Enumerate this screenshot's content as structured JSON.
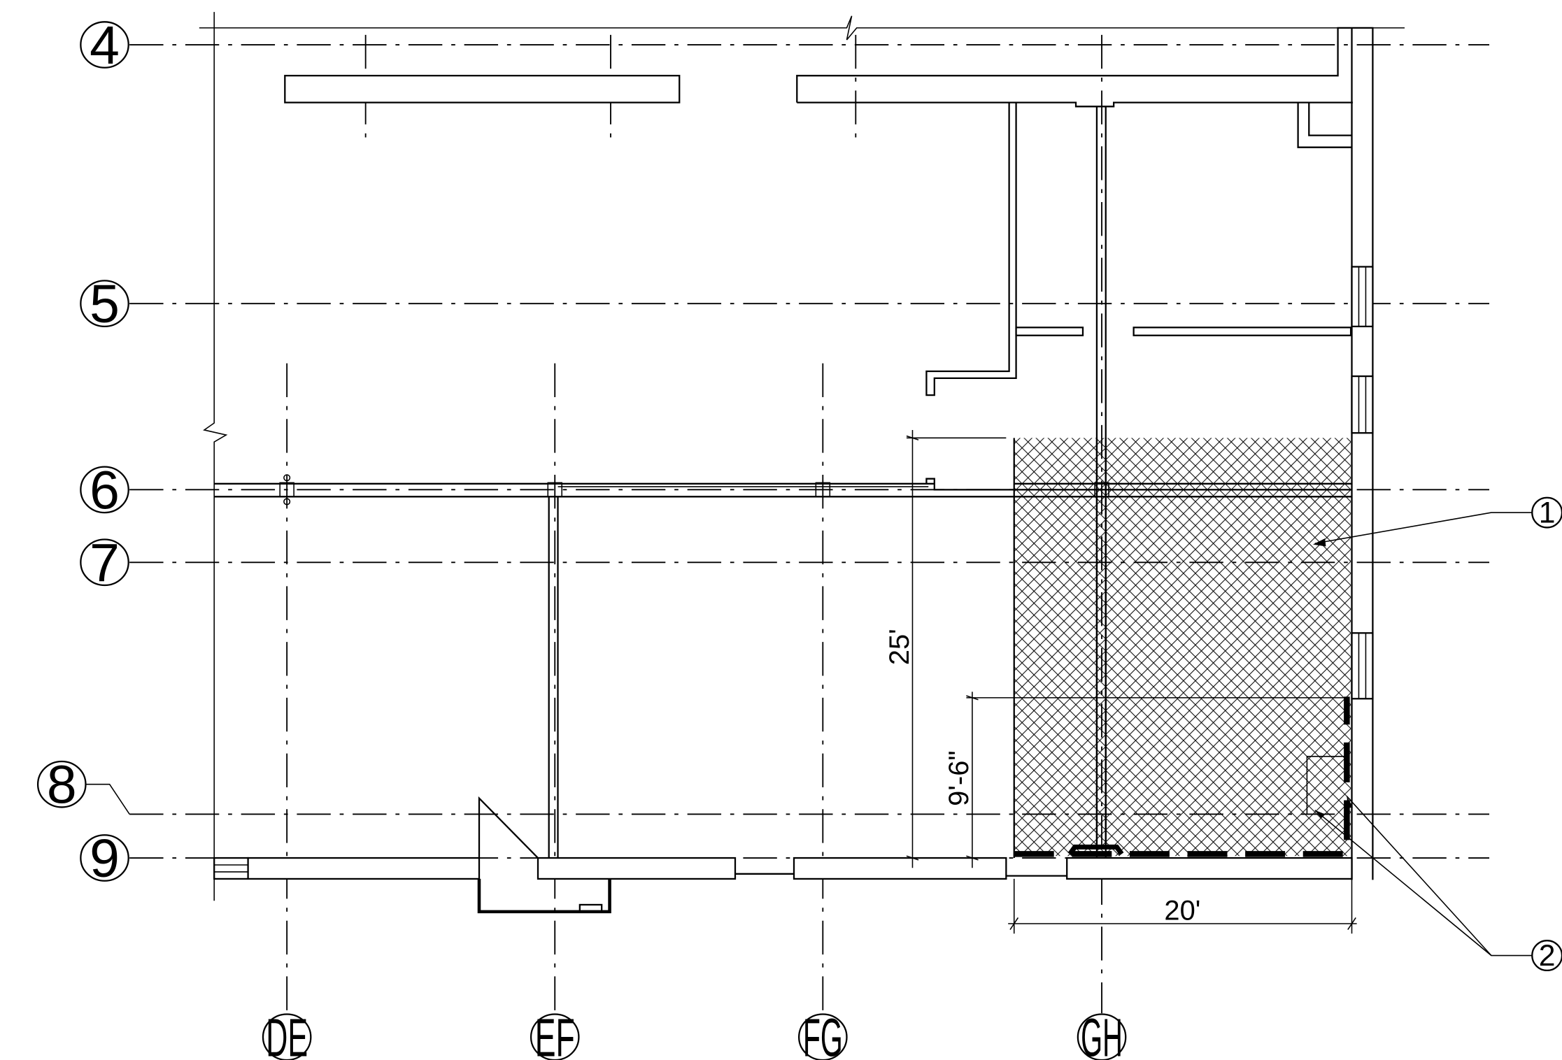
{
  "grid_rows": [
    {
      "id": "row-4",
      "label": "4"
    },
    {
      "id": "row-5",
      "label": "5"
    },
    {
      "id": "row-6",
      "label": "6"
    },
    {
      "id": "row-7",
      "label": "7"
    },
    {
      "id": "row-8",
      "label": "8"
    },
    {
      "id": "row-9",
      "label": "9"
    }
  ],
  "grid_columns": [
    {
      "id": "col-de",
      "label": "DE"
    },
    {
      "id": "col-ef",
      "label": "EF"
    },
    {
      "id": "col-fg",
      "label": "FG"
    },
    {
      "id": "col-gh",
      "label": "GH"
    }
  ],
  "dimensions": {
    "vertical_overall": "25'",
    "vertical_partial": "9'-6\"",
    "horizontal": "20'"
  },
  "keynotes": {
    "first": "1",
    "second": "2"
  }
}
